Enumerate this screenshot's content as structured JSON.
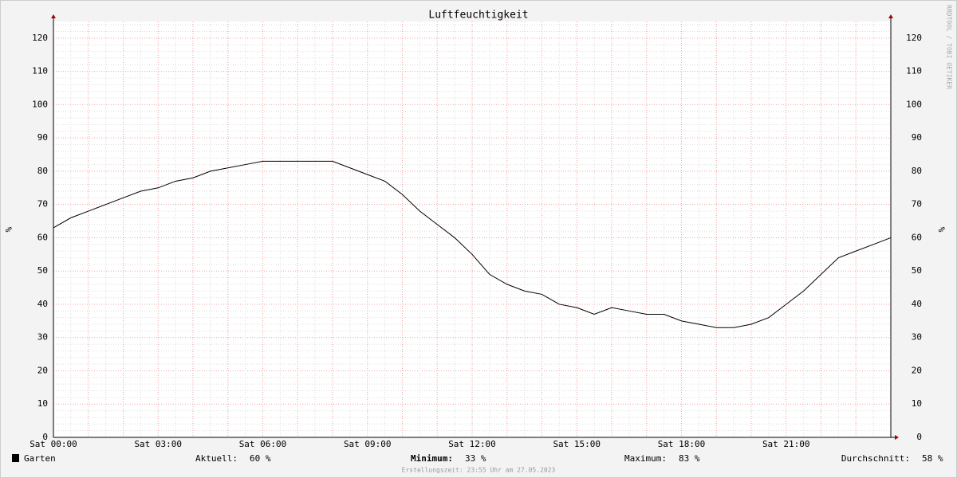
{
  "chart_data": {
    "type": "line",
    "title": "Luftfeuchtigkeit",
    "y_label": "%",
    "x": [
      0,
      0.5,
      1,
      1.5,
      2,
      2.5,
      3,
      3.5,
      4,
      4.5,
      5,
      5.5,
      6,
      6.5,
      7,
      7.5,
      8,
      8.5,
      9,
      9.5,
      10,
      10.5,
      11,
      11.5,
      12,
      12.5,
      13,
      13.5,
      14,
      14.5,
      15,
      15.5,
      16,
      16.5,
      17,
      17.5,
      18,
      18.5,
      19,
      19.5,
      20,
      20.5,
      21,
      21.5,
      22,
      22.5,
      23,
      23.5,
      24
    ],
    "series": [
      {
        "name": "Garten",
        "color": "#000000",
        "values": [
          63,
          66,
          68,
          70,
          72,
          74,
          75,
          77,
          78,
          80,
          81,
          82,
          83,
          83,
          83,
          83,
          83,
          81,
          79,
          77,
          73,
          68,
          64,
          60,
          55,
          49,
          46,
          44,
          43,
          40,
          39,
          37,
          39,
          38,
          37,
          37,
          35,
          34,
          33,
          33,
          34,
          36,
          40,
          44,
          49,
          54,
          56,
          58,
          60
        ]
      }
    ],
    "xlim": [
      0,
      24
    ],
    "xticks": [
      {
        "value": 0,
        "label": "Sat 00:00"
      },
      {
        "value": 3,
        "label": "Sat 03:00"
      },
      {
        "value": 6,
        "label": "Sat 06:00"
      },
      {
        "value": 9,
        "label": "Sat 09:00"
      },
      {
        "value": 12,
        "label": "Sat 12:00"
      },
      {
        "value": 15,
        "label": "Sat 15:00"
      },
      {
        "value": 18,
        "label": "Sat 18:00"
      },
      {
        "value": 21,
        "label": "Sat 21:00"
      }
    ],
    "ylim": [
      0,
      125
    ],
    "yticks": [
      0,
      10,
      20,
      30,
      40,
      50,
      60,
      70,
      80,
      90,
      100,
      110,
      120
    ],
    "grid": true,
    "stats": [
      {
        "label": "Aktuell:",
        "value": "60 %"
      },
      {
        "label": "Minimum:",
        "value": "33 %"
      },
      {
        "label": "Maximum:",
        "value": "83 %"
      },
      {
        "label": "Durchschnitt:",
        "value": "58 %"
      }
    ],
    "watermark": "RRDTOOL / TOBI OETIKER",
    "footer": "Erstellungszeit: 23:55 Uhr am 27.05.2023"
  }
}
